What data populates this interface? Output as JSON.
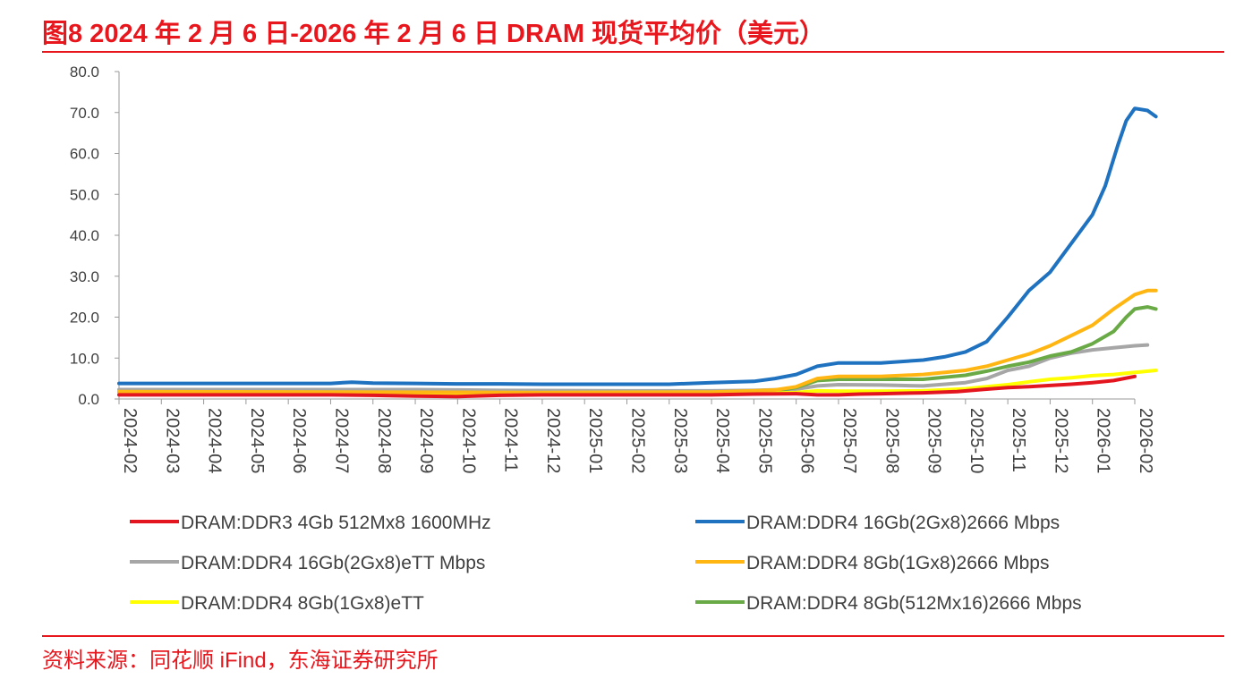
{
  "header": {
    "title": "图8  2024 年 2 月 6 日-2026 年 2 月 6 日 DRAM 现货平均价（美元）"
  },
  "footer": {
    "source": "资料来源：同花顺 iFind，东海证券研究所"
  },
  "chart_data": {
    "type": "line",
    "title": "图8  2024 年 2 月 6 日-2026 年 2 月 6 日 DRAM 现货平均价（美元）",
    "xlabel": "",
    "ylabel": "",
    "ylim": [
      0,
      80
    ],
    "yticks": [
      "0.0",
      "10.0",
      "20.0",
      "30.0",
      "40.0",
      "50.0",
      "60.0",
      "70.0",
      "80.0"
    ],
    "categories": [
      "2024-02",
      "2024-03",
      "2024-04",
      "2024-05",
      "2024-06",
      "2024-07",
      "2024-08",
      "2024-09",
      "2024-10",
      "2024-11",
      "2024-12",
      "2025-01",
      "2025-02",
      "2025-03",
      "2025-04",
      "2025-05",
      "2025-06",
      "2025-07",
      "2025-08",
      "2025-09",
      "2025-10",
      "2025-11",
      "2025-12",
      "2026-01",
      "2026-02"
    ],
    "grid": false,
    "legend_position": "bottom",
    "series": [
      {
        "name": "DRAM:DDR3 4Gb 512Mx8 1600MHz",
        "color": "#e3161f",
        "points": [
          [
            0,
            1.0
          ],
          [
            4,
            1.0
          ],
          [
            5,
            1.0
          ],
          [
            6,
            0.9
          ],
          [
            7,
            0.7
          ],
          [
            8,
            0.6
          ],
          [
            9,
            0.9
          ],
          [
            10,
            1.0
          ],
          [
            12,
            1.0
          ],
          [
            14,
            1.0
          ],
          [
            15,
            1.2
          ],
          [
            16,
            1.3
          ],
          [
            16.5,
            1.0
          ],
          [
            17,
            1.0
          ],
          [
            17.5,
            1.2
          ],
          [
            18,
            1.3
          ],
          [
            19,
            1.5
          ],
          [
            19.8,
            1.8
          ],
          [
            20.5,
            2.4
          ],
          [
            21,
            2.8
          ],
          [
            21.5,
            3.0
          ],
          [
            22,
            3.3
          ],
          [
            22.5,
            3.6
          ],
          [
            23,
            4.0
          ],
          [
            23.5,
            4.5
          ],
          [
            24,
            5.5
          ]
        ]
      },
      {
        "name": "DRAM:DDR4 16Gb(2Gx8)2666 Mbps",
        "color": "#1f72bf",
        "points": [
          [
            0,
            3.8
          ],
          [
            5,
            3.8
          ],
          [
            5.5,
            4.1
          ],
          [
            6,
            3.9
          ],
          [
            7,
            3.8
          ],
          [
            8,
            3.7
          ],
          [
            9,
            3.7
          ],
          [
            10,
            3.6
          ],
          [
            12,
            3.6
          ],
          [
            13,
            3.6
          ],
          [
            14,
            4.0
          ],
          [
            15,
            4.3
          ],
          [
            15.5,
            5.0
          ],
          [
            16,
            6.0
          ],
          [
            16.5,
            8.0
          ],
          [
            17,
            8.8
          ],
          [
            18,
            8.8
          ],
          [
            19,
            9.5
          ],
          [
            19.5,
            10.3
          ],
          [
            20,
            11.5
          ],
          [
            20.5,
            14.0
          ],
          [
            21,
            20.0
          ],
          [
            21.5,
            26.5
          ],
          [
            22,
            31.0
          ],
          [
            22.5,
            38.0
          ],
          [
            23,
            45.0
          ],
          [
            23.3,
            52.0
          ],
          [
            23.6,
            62.0
          ],
          [
            23.8,
            68.0
          ],
          [
            24,
            71.0
          ],
          [
            24.3,
            70.5
          ],
          [
            24.5,
            69.0
          ]
        ]
      },
      {
        "name": "DRAM:DDR4 16Gb(2Gx8)eTT Mbps",
        "color": "#a6a6a6",
        "points": [
          [
            0,
            2.3
          ],
          [
            5,
            2.3
          ],
          [
            7,
            2.3
          ],
          [
            8,
            2.2
          ],
          [
            9,
            2.1
          ],
          [
            12,
            2.0
          ],
          [
            14,
            2.0
          ],
          [
            15,
            2.1
          ],
          [
            16,
            2.4
          ],
          [
            16.5,
            3.2
          ],
          [
            17,
            3.5
          ],
          [
            18,
            3.4
          ],
          [
            19,
            3.2
          ],
          [
            20,
            4.0
          ],
          [
            20.5,
            5.0
          ],
          [
            21,
            7.0
          ],
          [
            21.5,
            8.0
          ],
          [
            22,
            10.0
          ],
          [
            22.5,
            11.2
          ],
          [
            23,
            12.0
          ],
          [
            23.5,
            12.5
          ],
          [
            24,
            13.0
          ],
          [
            24.3,
            13.2
          ]
        ]
      },
      {
        "name": "DRAM:DDR4 8Gb(1Gx8)2666 Mbps",
        "color": "#ffb612",
        "points": [
          [
            0,
            1.8
          ],
          [
            5,
            1.7
          ],
          [
            10,
            1.6
          ],
          [
            14,
            1.7
          ],
          [
            15,
            2.0
          ],
          [
            15.5,
            2.2
          ],
          [
            16,
            3.0
          ],
          [
            16.5,
            5.0
          ],
          [
            17,
            5.5
          ],
          [
            18,
            5.5
          ],
          [
            19,
            6.0
          ],
          [
            20,
            7.0
          ],
          [
            20.5,
            8.0
          ],
          [
            21,
            9.5
          ],
          [
            21.5,
            11.0
          ],
          [
            22,
            13.0
          ],
          [
            22.5,
            15.5
          ],
          [
            23,
            18.0
          ],
          [
            23.5,
            22.0
          ],
          [
            24,
            25.5
          ],
          [
            24.3,
            26.5
          ],
          [
            24.5,
            26.5
          ]
        ]
      },
      {
        "name": "DRAM:DDR4 8Gb(1Gx8)eTT",
        "color": "#ffff00",
        "points": [
          [
            0,
            1.3
          ],
          [
            5,
            1.3
          ],
          [
            8,
            1.2
          ],
          [
            10,
            1.1
          ],
          [
            12,
            1.1
          ],
          [
            14,
            1.2
          ],
          [
            15,
            1.3
          ],
          [
            16,
            1.6
          ],
          [
            16.5,
            2.0
          ],
          [
            17,
            1.9
          ],
          [
            18,
            1.9
          ],
          [
            19,
            2.0
          ],
          [
            20,
            2.5
          ],
          [
            20.5,
            3.0
          ],
          [
            21,
            3.5
          ],
          [
            21.5,
            4.2
          ],
          [
            22,
            4.8
          ],
          [
            22.5,
            5.2
          ],
          [
            23,
            5.7
          ],
          [
            23.5,
            6.0
          ],
          [
            24,
            6.5
          ],
          [
            24.5,
            7.0
          ]
        ]
      },
      {
        "name": "DRAM:DDR4 8Gb(512Mx16)2666 Mbps",
        "color": "#6aaa46",
        "points": [
          [
            0,
            1.6
          ],
          [
            5,
            1.5
          ],
          [
            10,
            1.4
          ],
          [
            14,
            1.5
          ],
          [
            15,
            1.7
          ],
          [
            15.5,
            2.0
          ],
          [
            16,
            2.8
          ],
          [
            16.5,
            4.5
          ],
          [
            17,
            4.8
          ],
          [
            18,
            4.8
          ],
          [
            19,
            4.8
          ],
          [
            20,
            5.8
          ],
          [
            20.5,
            6.8
          ],
          [
            21,
            8.0
          ],
          [
            21.5,
            9.0
          ],
          [
            22,
            10.5
          ],
          [
            22.5,
            11.5
          ],
          [
            23,
            13.5
          ],
          [
            23.5,
            16.5
          ],
          [
            23.8,
            20.0
          ],
          [
            24,
            22.0
          ],
          [
            24.3,
            22.5
          ],
          [
            24.5,
            22.0
          ]
        ]
      }
    ]
  }
}
